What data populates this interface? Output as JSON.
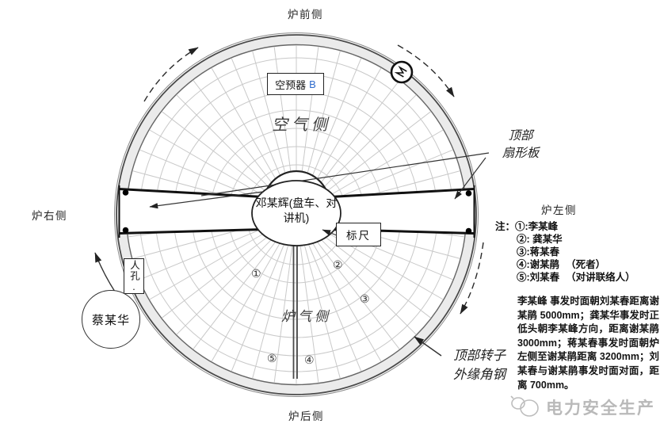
{
  "orientation_labels": {
    "front": "炉前侧",
    "rear": "炉后侧",
    "right": "炉右侧",
    "left": "炉左侧"
  },
  "diagram": {
    "device_box": {
      "name": "空预器",
      "unit": "B"
    },
    "air_side": "空气侧",
    "gas_side": "炉气侧",
    "center_label": "邓某辉(盘车、对讲机)",
    "ruler_label": "标尺",
    "manhole_label": "人孔.",
    "person_circle": "蔡某华",
    "sector_plate_label": [
      "顶部",
      "扇形板"
    ],
    "rotor_edge_label": [
      "顶部转子",
      "外缘角钢"
    ],
    "markers": [
      "①",
      "②",
      "③",
      "④",
      "⑤"
    ]
  },
  "notes": {
    "prefix": "注：",
    "items": [
      {
        "label": "①:李某峰",
        "suffix": ""
      },
      {
        "label": "②: 龚某华",
        "suffix": ""
      },
      {
        "label": "③:蒋某春",
        "suffix": ""
      },
      {
        "label": "④:谢某鹃",
        "suffix": "（死者）"
      },
      {
        "label": "⑤:刘某春",
        "suffix": "（对讲联络人）"
      }
    ]
  },
  "detail_text": "李某峰 事发时面朝刘某春距离谢某鹃 5000mm；龚某华事发时正低头朝李某峰方向，距离谢某鹃 3000mm；蒋某春事发时面朝炉左侧至谢某鹃距离 3200mm；刘某春与谢某鹃事发时面对面，距离 700mm。",
  "footer": {
    "brand": "电力安全生产"
  },
  "colors": {
    "unit_blue": "#2f6bcc",
    "rim_fill": "#ebebeb",
    "grid_line": "#c9c9c9",
    "watermark_gray": "#b9b9b9"
  }
}
